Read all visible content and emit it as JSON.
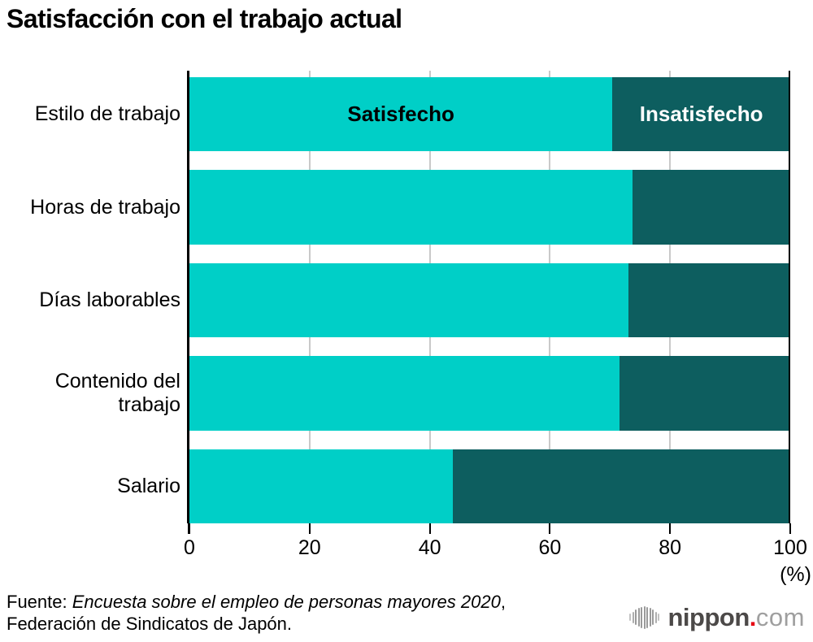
{
  "title": "Satisfacción con el trabajo actual",
  "chart_data": {
    "type": "bar",
    "orientation": "horizontal",
    "stacked": true,
    "title": "Satisfacción con el trabajo actual",
    "categories": [
      "Estilo de trabajo",
      "Horas de trabajo",
      "Días laborables",
      "Contenido del trabajo",
      "Salario"
    ],
    "series": [
      {
        "name": "Satisfecho",
        "values": [
          70.4,
          73.8,
          73.1,
          71.6,
          43.9
        ],
        "color": "#00cfc7",
        "label_color": "#000000"
      },
      {
        "name": "Insatisfecho",
        "values": [
          29.6,
          26.2,
          26.9,
          28.4,
          56.1
        ],
        "color": "#0d5e5f",
        "label_color": "#ffffff"
      }
    ],
    "xlim": [
      0,
      100
    ],
    "x_ticks": [
      0,
      20,
      40,
      60,
      80,
      100
    ],
    "x_unit": "(%)",
    "grid": "vertical",
    "gridline_color": "#c9c9c9",
    "axis_color": "#000000",
    "legend": "series names shown inside first bar"
  },
  "source": {
    "prefix": "Fuente: ",
    "work_italic": "Encuesta sobre el empleo de personas mayores 2020",
    "suffix": ",",
    "line2": "Federación de Sindicatos de Japón."
  },
  "logo": {
    "icon": "soundwave-icon",
    "brand": "nippon",
    "dot": ".",
    "tld": "com",
    "brand_color": "#4c4948",
    "dot_color": "#e60012",
    "tld_color": "#9f9f9f"
  }
}
